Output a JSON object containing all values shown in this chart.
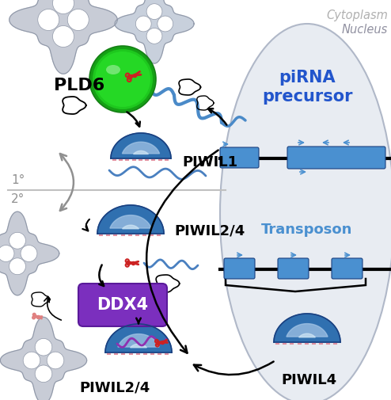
{
  "bg_color": "#ffffff",
  "cytoplasm_label": "Cytoplasm",
  "nucleus_label": "Nucleus",
  "pirna_label": "piRNA\nprecursor",
  "transposon_label": "Transposon",
  "pld6_label": "PLD6",
  "piwil1_label": "PIWIL1",
  "piwil24_top_label": "PIWIL2/4",
  "ddx4_label": "DDX4",
  "piwil24_bot_label": "PIWIL2/4",
  "piwil4_label": "PIWIL4",
  "primary_label": "1°",
  "secondary_label": "2°",
  "blue_element": "#4a90d0",
  "blue_dark": "#1a4080",
  "blue_med": "#3070b0",
  "blue_pirna": "#2255cc",
  "green_pld6": "#22b022",
  "green_edge": "#158015",
  "purple_ddx4": "#7b2fbe",
  "purple_edge": "#5a1a9a",
  "purple_rna": "#9030b0",
  "red_scissors": "#cc2222",
  "gray_light": "#d0d0d0",
  "gray_med": "#a0a0a0",
  "gray_dark": "#707070",
  "nucleus_fill": "#e8ecf2",
  "nucleus_edge": "#b0b8c8",
  "cytoplasm_color": "#b0b0b0",
  "nucleus_color": "#9090a0"
}
